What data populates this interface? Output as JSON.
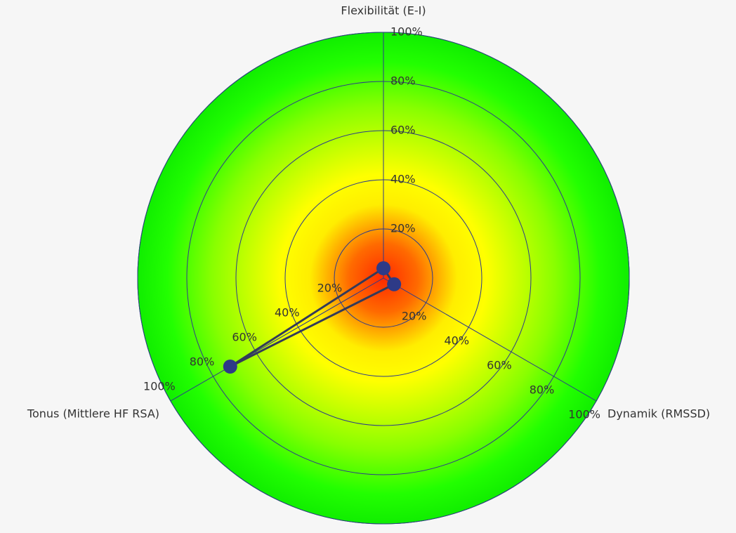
{
  "chart_data": {
    "type": "radar",
    "categories": [
      "Flexibilität (E-I)",
      "Dynamik (RMSSD)",
      "Tonus (Mittlere HF RSA)"
    ],
    "values": [
      4,
      5,
      72
    ],
    "color": "#2e3a87",
    "line_color": "#333a5a",
    "rlim": [
      0,
      100
    ],
    "rticks": [
      {
        "value": 20,
        "label": "20%"
      },
      {
        "value": 40,
        "label": "40%"
      },
      {
        "value": 60,
        "label": "60%"
      },
      {
        "value": 80,
        "label": "80%"
      },
      {
        "value": 100,
        "label": "100%"
      }
    ]
  }
}
